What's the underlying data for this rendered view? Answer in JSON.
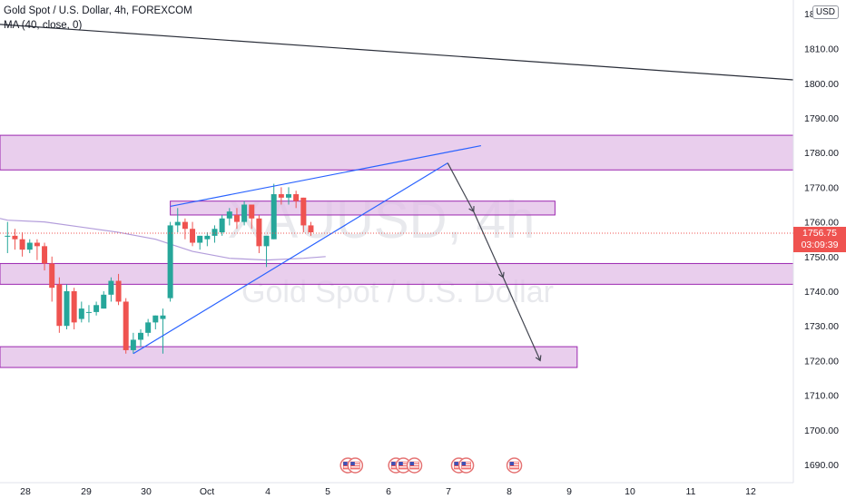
{
  "legend": {
    "symbol_line": "Gold Spot / U.S. Dollar, 4h, FOREXCOM",
    "indicator_line": "MA (40, close, 0)"
  },
  "currency_button": "USD",
  "current_price": {
    "value": "1756.75",
    "countdown": "03:09:39"
  },
  "watermark": {
    "symbol": "XAUUSD, 4h",
    "description": "Gold Spot / U.S. Dollar"
  },
  "colors": {
    "up": "#26a69a",
    "down": "#ef5350",
    "zone_fill": "#e1bee7",
    "zone_border": "#9c27b0",
    "trendline": "#2962ff",
    "ma": "#b39ddb",
    "resistance_line": "#2a2e39",
    "arrow": "#434651"
  },
  "icons": [
    "us-flag-event-icon"
  ],
  "chart_data": {
    "type": "candlestick",
    "title": "Gold Spot / U.S. Dollar, 4h, FOREXCOM",
    "y_axis": {
      "ticks": [
        1690,
        1700,
        1710,
        1720,
        1730,
        1740,
        1750,
        1760,
        1770,
        1780,
        1790,
        1800,
        1810
      ],
      "top_partial_label": "18",
      "position": "right"
    },
    "x_axis": {
      "ticks": [
        "28",
        "29",
        "30",
        "Oct",
        "4",
        "5",
        "6",
        "7",
        "8",
        "9",
        "10",
        "11",
        "12"
      ]
    },
    "ylim": [
      1685,
      1822
    ],
    "grid": false,
    "candles": [
      {
        "o": 1756,
        "h": 1760,
        "c": 1756,
        "l": 1751
      },
      {
        "o": 1756,
        "h": 1758,
        "c": 1755,
        "l": 1752
      },
      {
        "o": 1755,
        "h": 1757,
        "c": 1752,
        "l": 1750
      },
      {
        "o": 1752,
        "h": 1755,
        "c": 1754,
        "l": 1751
      },
      {
        "o": 1754,
        "h": 1755,
        "c": 1753,
        "l": 1749
      },
      {
        "o": 1753,
        "h": 1754,
        "c": 1748,
        "l": 1746
      },
      {
        "o": 1748,
        "h": 1750,
        "c": 1741,
        "l": 1737
      },
      {
        "o": 1742,
        "h": 1744,
        "c": 1730,
        "l": 1728
      },
      {
        "o": 1730,
        "h": 1742,
        "c": 1740,
        "l": 1729
      },
      {
        "o": 1740,
        "h": 1741,
        "c": 1731,
        "l": 1729
      },
      {
        "o": 1732,
        "h": 1737,
        "c": 1735,
        "l": 1731
      },
      {
        "o": 1734,
        "h": 1736,
        "c": 1734,
        "l": 1731
      },
      {
        "o": 1734,
        "h": 1737,
        "c": 1736,
        "l": 1733
      },
      {
        "o": 1735,
        "h": 1740,
        "c": 1739,
        "l": 1735
      },
      {
        "o": 1739,
        "h": 1744,
        "c": 1743,
        "l": 1737
      },
      {
        "o": 1743,
        "h": 1745,
        "c": 1737,
        "l": 1736
      },
      {
        "o": 1737,
        "h": 1738,
        "c": 1723,
        "l": 1722
      },
      {
        "o": 1723,
        "h": 1728,
        "c": 1726,
        "l": 1722
      },
      {
        "o": 1726,
        "h": 1729,
        "c": 1728,
        "l": 1724
      },
      {
        "o": 1728,
        "h": 1732,
        "c": 1731,
        "l": 1727
      },
      {
        "o": 1731,
        "h": 1733,
        "c": 1733,
        "l": 1729
      },
      {
        "o": 1732,
        "h": 1735,
        "c": 1733,
        "l": 1722
      },
      {
        "o": 1738,
        "h": 1760,
        "c": 1759,
        "l": 1737
      },
      {
        "o": 1759,
        "h": 1764,
        "c": 1760,
        "l": 1757
      },
      {
        "o": 1760,
        "h": 1761,
        "c": 1758,
        "l": 1755
      },
      {
        "o": 1758,
        "h": 1760,
        "c": 1754,
        "l": 1753
      },
      {
        "o": 1754,
        "h": 1756,
        "c": 1756,
        "l": 1752
      },
      {
        "o": 1755,
        "h": 1757,
        "c": 1756,
        "l": 1753
      },
      {
        "o": 1756,
        "h": 1759,
        "c": 1758,
        "l": 1754
      },
      {
        "o": 1757,
        "h": 1762,
        "c": 1761,
        "l": 1756
      },
      {
        "o": 1761,
        "h": 1764,
        "c": 1763,
        "l": 1759
      },
      {
        "o": 1762,
        "h": 1764,
        "c": 1760,
        "l": 1758
      },
      {
        "o": 1760,
        "h": 1766,
        "c": 1765,
        "l": 1759
      },
      {
        "o": 1765,
        "h": 1765,
        "c": 1761,
        "l": 1758
      },
      {
        "o": 1761,
        "h": 1762,
        "c": 1753,
        "l": 1751
      },
      {
        "o": 1753,
        "h": 1756,
        "c": 1756,
        "l": 1747
      },
      {
        "o": 1755,
        "h": 1771,
        "c": 1768,
        "l": 1755
      },
      {
        "o": 1768,
        "h": 1770,
        "c": 1767,
        "l": 1765
      },
      {
        "o": 1767,
        "h": 1770,
        "c": 1768,
        "l": 1765
      },
      {
        "o": 1768,
        "h": 1769,
        "c": 1766,
        "l": 1764
      },
      {
        "o": 1767,
        "h": 1767,
        "c": 1759,
        "l": 1757
      },
      {
        "o": 1759,
        "h": 1760,
        "c": 1757,
        "l": 1756
      }
    ],
    "moving_average_40": [
      {
        "i": -6,
        "v": 1761
      },
      {
        "i": 0,
        "v": 1760.5
      },
      {
        "i": 5,
        "v": 1760
      },
      {
        "i": 10,
        "v": 1758.5
      },
      {
        "i": 15,
        "v": 1757
      },
      {
        "i": 20,
        "v": 1755
      },
      {
        "i": 25,
        "v": 1751.5
      },
      {
        "i": 30,
        "v": 1749.5
      },
      {
        "i": 35,
        "v": 1749
      },
      {
        "i": 40,
        "v": 1749.5
      },
      {
        "i": 43,
        "v": 1750
      }
    ],
    "zones": [
      {
        "i1": -6,
        "i2": 130,
        "top": 1785,
        "bottom": 1775
      },
      {
        "i1": 22,
        "i2": 74,
        "top": 1766,
        "bottom": 1762
      },
      {
        "i1": -6,
        "i2": 118,
        "top": 1748,
        "bottom": 1742
      },
      {
        "i1": -6,
        "i2": 77,
        "top": 1724,
        "bottom": 1718
      }
    ],
    "drawings": {
      "rising_wedge_upper": {
        "i1": 22,
        "v1": 1764.5,
        "i2": 64,
        "v2": 1782
      },
      "rising_wedge_lower": {
        "i1": 17,
        "v1": 1722,
        "i2": 59.5,
        "v2": 1777
      },
      "descending_resistance": {
        "i1": -6,
        "v1": 1817,
        "i2": 130,
        "v2": 1801
      },
      "forecast_path": [
        {
          "i": 59.5,
          "v": 1777
        },
        {
          "i": 63,
          "v": 1763
        },
        {
          "i": 67,
          "v": 1744
        },
        {
          "i": 72,
          "v": 1720
        }
      ]
    },
    "event_markers": [
      {
        "i": 46
      },
      {
        "i": 47
      },
      {
        "i": 52.5
      },
      {
        "i": 53.5
      },
      {
        "i": 55
      },
      {
        "i": 61
      },
      {
        "i": 62
      },
      {
        "i": 68.5
      }
    ]
  }
}
